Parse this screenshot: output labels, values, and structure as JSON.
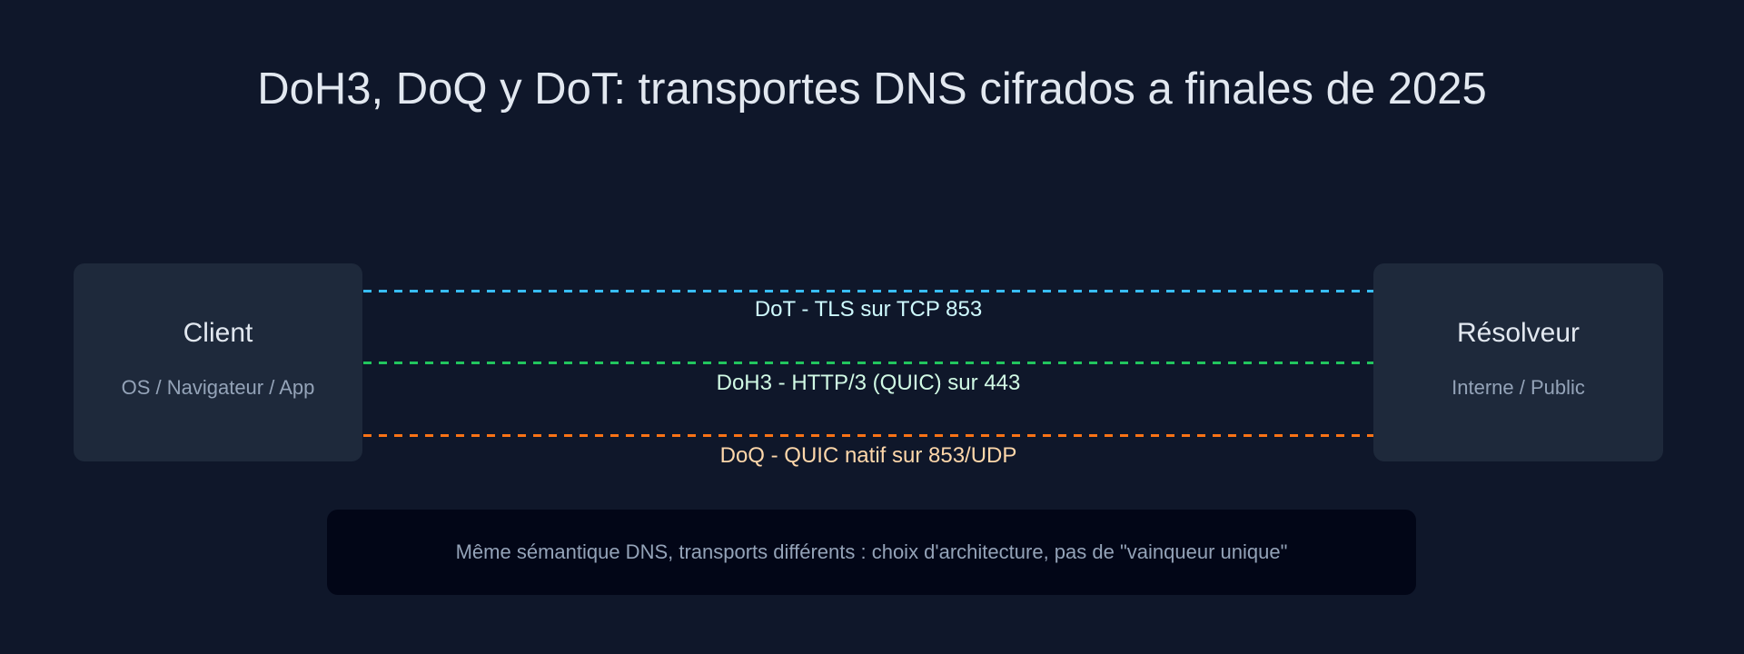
{
  "title": "DoH3, DoQ y DoT: transportes DNS cifrados a finales de 2025",
  "client": {
    "name": "Client",
    "sub": "OS / Navigateur / App"
  },
  "resolver": {
    "name": "Résolveur",
    "sub": "Interne / Public"
  },
  "links": [
    {
      "label": "DoT - TLS sur TCP 853",
      "color": "#38bdf8",
      "text_color": "#cffafe"
    },
    {
      "label": "DoH3 - HTTP/3 (QUIC) sur 443",
      "color": "#22c55e",
      "text_color": "#d1fae5"
    },
    {
      "label": "DoQ - QUIC natif sur 853/UDP",
      "color": "#f97316",
      "text_color": "#fed7aa"
    }
  ],
  "note": "Même sémantique DNS, transports différents : choix d'architecture, pas de \"vainqueur unique\""
}
